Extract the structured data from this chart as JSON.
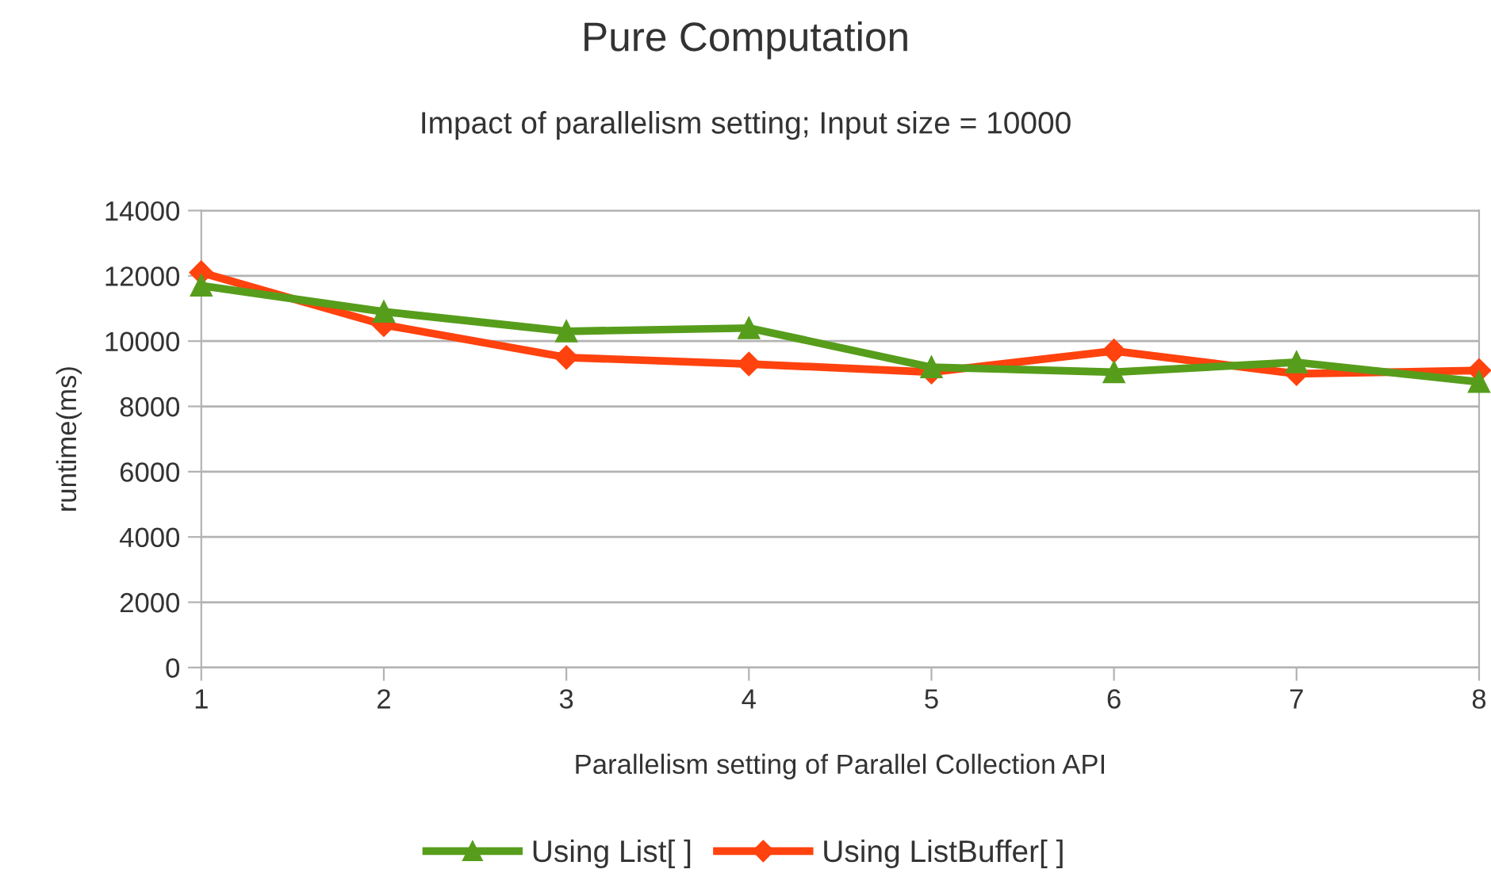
{
  "chart_data": {
    "type": "line",
    "title": "Pure Computation",
    "subtitle": "Impact of parallelism setting; Input size = 10000",
    "xlabel": "Parallelism setting of Parallel Collection API",
    "ylabel": "runtime(ms)",
    "x": [
      1,
      2,
      3,
      4,
      5,
      6,
      7,
      8
    ],
    "xlim": [
      1,
      8
    ],
    "xticks": [
      1,
      2,
      3,
      4,
      5,
      6,
      7,
      8
    ],
    "ylim": [
      0,
      14000
    ],
    "yticks": [
      0,
      2000,
      4000,
      6000,
      8000,
      10000,
      12000,
      14000
    ],
    "grid": "y",
    "legend": "bottom",
    "line_style": "solid",
    "series": [
      {
        "name": "Using List[ ]",
        "color": "#579d1c",
        "marker": "triangle",
        "values": [
          11700,
          10900,
          10300,
          10400,
          9200,
          9050,
          9350,
          8750
        ]
      },
      {
        "name": "Using ListBuffer[ ]",
        "color": "#ff420e",
        "marker": "diamond",
        "values": [
          12100,
          10500,
          9500,
          9300,
          9050,
          9700,
          9000,
          9100
        ]
      }
    ]
  }
}
